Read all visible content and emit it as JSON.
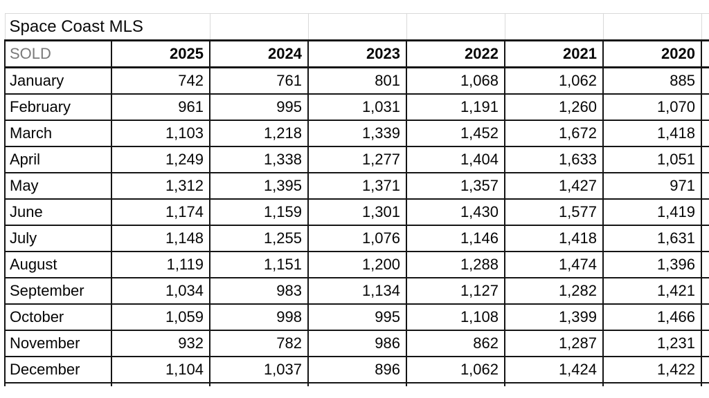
{
  "sheet": {
    "title": "Space Coast MLS",
    "header": {
      "label": "SOLD",
      "years": [
        "2025",
        "2024",
        "2023",
        "2022",
        "2021",
        "2020"
      ]
    },
    "rows": [
      {
        "month": "January",
        "values": [
          "742",
          "761",
          "801",
          "1,068",
          "1,062",
          "885"
        ]
      },
      {
        "month": "February",
        "values": [
          "961",
          "995",
          "1,031",
          "1,191",
          "1,260",
          "1,070"
        ]
      },
      {
        "month": "March",
        "values": [
          "1,103",
          "1,218",
          "1,339",
          "1,452",
          "1,672",
          "1,418"
        ]
      },
      {
        "month": "April",
        "values": [
          "1,249",
          "1,338",
          "1,277",
          "1,404",
          "1,633",
          "1,051"
        ]
      },
      {
        "month": "May",
        "values": [
          "1,312",
          "1,395",
          "1,371",
          "1,357",
          "1,427",
          "971"
        ]
      },
      {
        "month": "June",
        "values": [
          "1,174",
          "1,159",
          "1,301",
          "1,430",
          "1,577",
          "1,419"
        ]
      },
      {
        "month": "July",
        "values": [
          "1,148",
          "1,255",
          "1,076",
          "1,146",
          "1,418",
          "1,631"
        ]
      },
      {
        "month": "August",
        "values": [
          "1,119",
          "1,151",
          "1,200",
          "1,288",
          "1,474",
          "1,396"
        ]
      },
      {
        "month": "September",
        "values": [
          "1,034",
          "983",
          "1,134",
          "1,127",
          "1,282",
          "1,421"
        ]
      },
      {
        "month": "October",
        "values": [
          "1,059",
          "998",
          "995",
          "1,108",
          "1,399",
          "1,466"
        ]
      },
      {
        "month": "November",
        "values": [
          "932",
          "782",
          "986",
          "862",
          "1,287",
          "1,231"
        ]
      },
      {
        "month": "December",
        "values": [
          "1,104",
          "1,037",
          "896",
          "1,062",
          "1,424",
          "1,422"
        ]
      }
    ],
    "colors": {
      "grid_black": "#141414",
      "grid_gray": "#d9d9d9",
      "sold_label_text": "#7a7a7a",
      "cell_text": "#050505",
      "background": "#ffffff"
    }
  }
}
